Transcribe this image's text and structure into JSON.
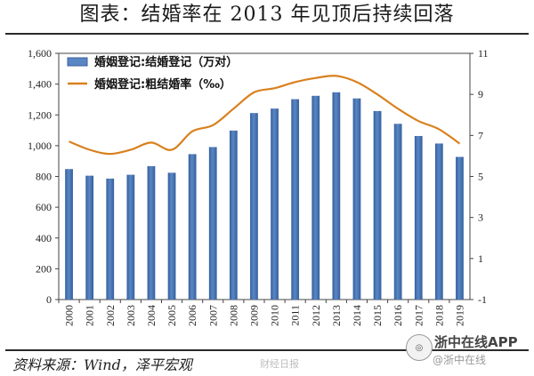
{
  "title": "图表：结婚率在 2013 年见顶后持续回落",
  "source": "资料来源：Wind，泽平宏观",
  "watermark_center": "财经日报",
  "watermark_app": {
    "name": "浙中在线APP",
    "sub": "@浙中在线",
    "badge_icon": "weibo-icon"
  },
  "colors": {
    "bar": "#5b86c4",
    "bar_dark": "#35609e",
    "line": "#d9801e",
    "axis": "#444444"
  },
  "chart_data": {
    "type": "bar",
    "categories": [
      "2000",
      "2001",
      "2002",
      "2003",
      "2004",
      "2005",
      "2006",
      "2007",
      "2008",
      "2009",
      "2010",
      "2011",
      "2012",
      "2013",
      "2014",
      "2015",
      "2016",
      "2017",
      "2018",
      "2019"
    ],
    "series": [
      {
        "name": "婚姻登记:结婚登记（万对）",
        "type": "bar",
        "axis": "left",
        "values": [
          848,
          805,
          786,
          811,
          867,
          824,
          945,
          991,
          1098,
          1212,
          1241,
          1302,
          1324,
          1347,
          1307,
          1225,
          1142,
          1063,
          1014,
          927
        ]
      },
      {
        "name": "婚姻登记:粗结婚率（‰）",
        "type": "line",
        "axis": "right",
        "values": [
          6.7,
          6.3,
          6.1,
          6.3,
          6.65,
          6.3,
          7.2,
          7.5,
          8.3,
          9.1,
          9.3,
          9.6,
          9.8,
          9.9,
          9.6,
          9.0,
          8.3,
          7.7,
          7.3,
          6.6
        ]
      }
    ],
    "left_axis": {
      "ylim": [
        0,
        1600
      ],
      "ticks": [
        0,
        200,
        400,
        600,
        800,
        1000,
        1200,
        1400,
        1600
      ],
      "tick_labels": [
        "0",
        "200",
        "400",
        "600",
        "800",
        "1,000",
        "1,200",
        "1,400",
        "1,600"
      ]
    },
    "right_axis": {
      "ylim": [
        -1,
        11
      ],
      "ticks": [
        -1,
        1,
        3,
        5,
        7,
        9,
        11
      ],
      "tick_labels": [
        "-1",
        "1",
        "3",
        "5",
        "7",
        "9",
        "11"
      ]
    },
    "legend_position": "top-left",
    "grid": false
  }
}
